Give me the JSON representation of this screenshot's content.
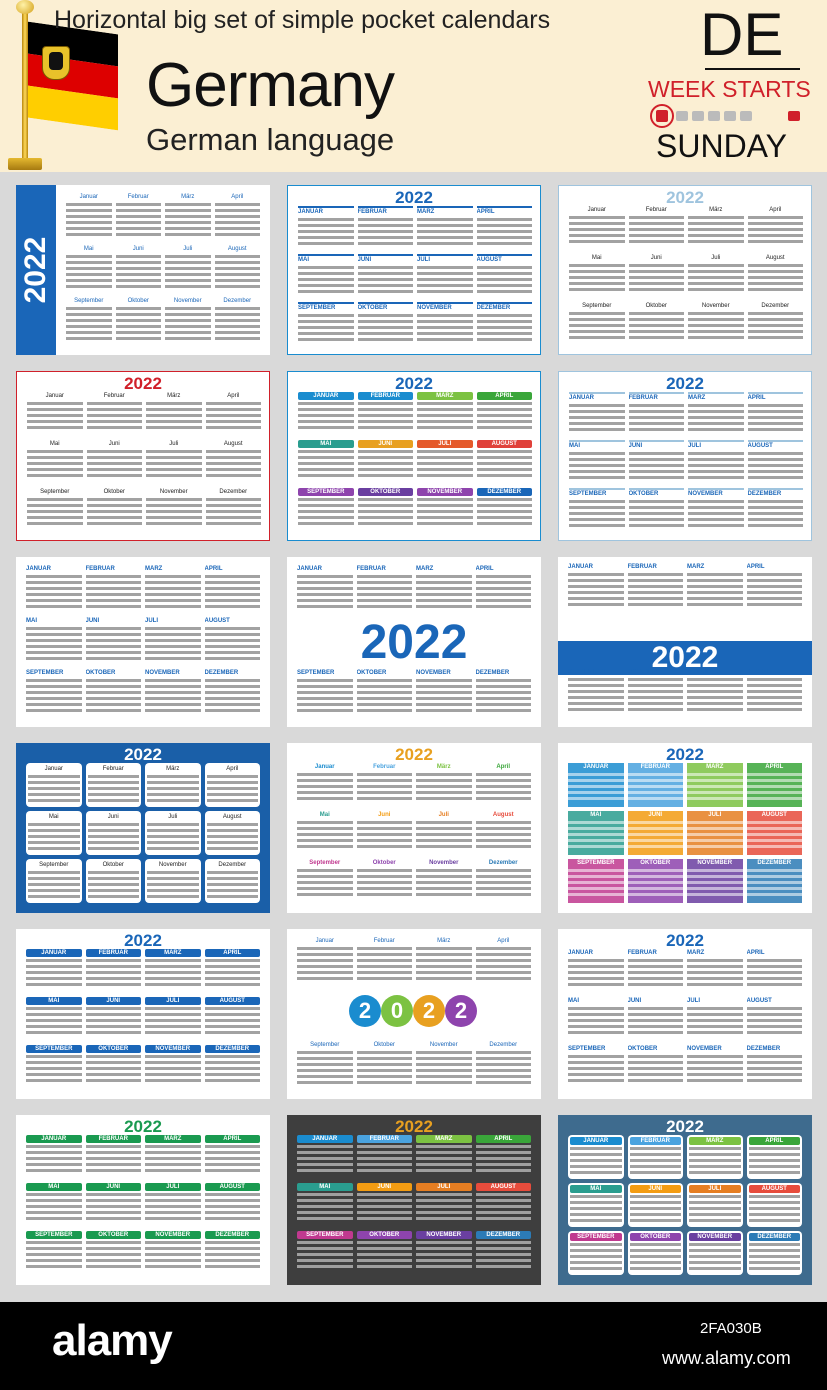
{
  "header": {
    "title": "Horizontal big set of simple pocket calendars",
    "country": "Germany",
    "language": "German language",
    "code": "DE",
    "week_starts": "WEEK STARTS",
    "week_day": "SUNDAY",
    "flag_colors": [
      "#000000",
      "#dd0000",
      "#ffce00"
    ]
  },
  "year": "2022",
  "months": [
    "Januar",
    "Februar",
    "März",
    "April",
    "Mai",
    "Juni",
    "Juli",
    "August",
    "September",
    "Oktober",
    "November",
    "Dezember"
  ],
  "months_upper": [
    "JANUAR",
    "FEBRUAR",
    "MÄRZ",
    "APRIL",
    "MAI",
    "JUNI",
    "JULI",
    "AUGUST",
    "SEPTEMBER",
    "OKTOBER",
    "NOVEMBER",
    "DEZEMBER"
  ],
  "footer": {
    "brand": "alamy",
    "image_id": "2FA030B",
    "site": "www.alamy.com"
  }
}
